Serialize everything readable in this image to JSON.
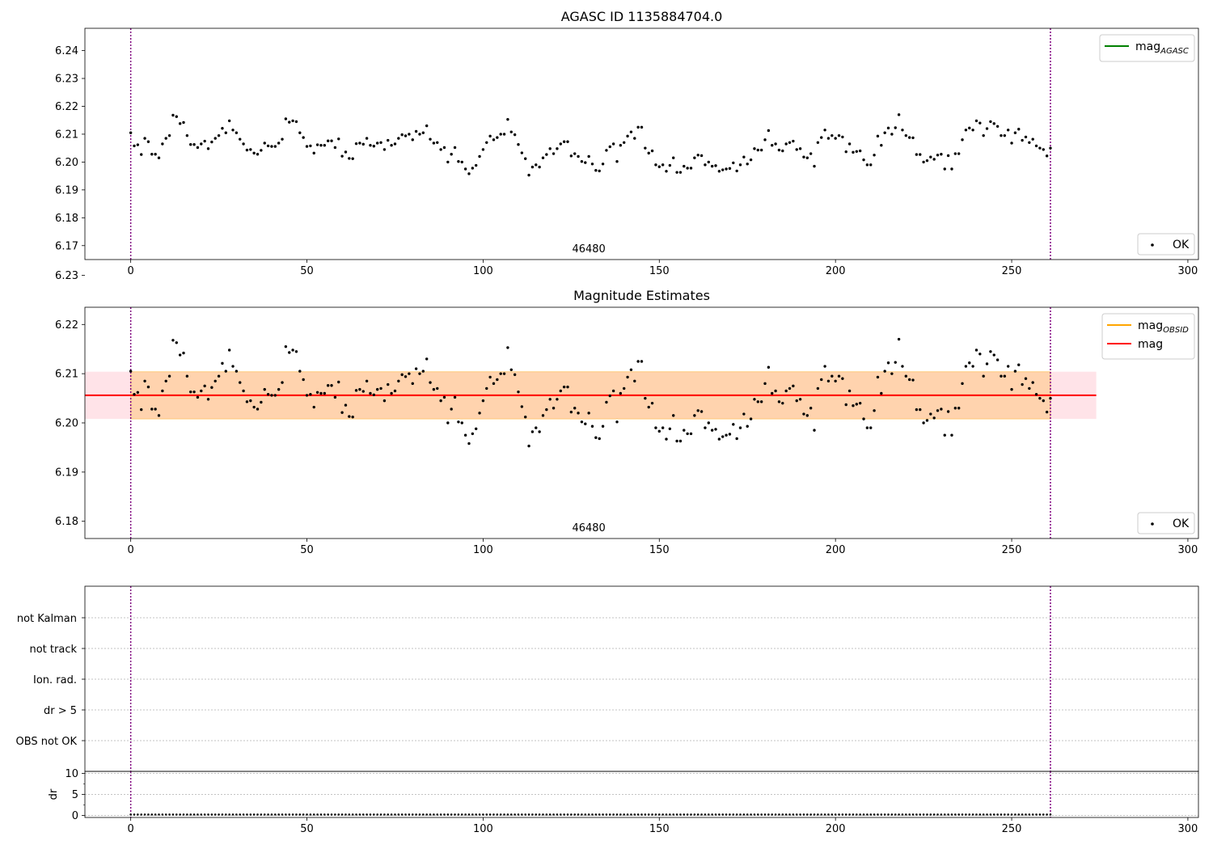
{
  "chart_data": [
    {
      "type": "scatter",
      "title": "AGASC ID 1135884704.0",
      "xlim": [
        -13,
        303
      ],
      "ylim": [
        6.165,
        6.248
      ],
      "x_ticks": [
        0,
        50,
        100,
        150,
        200,
        250,
        300
      ],
      "y_ticks": [
        6.17,
        6.18,
        6.19,
        6.2,
        6.21,
        6.22,
        6.23,
        6.24
      ],
      "y_tick_labels": [
        "6.17",
        "6.18",
        "6.19",
        "6.20",
        "6.21",
        "6.22",
        "6.23",
        "6.24"
      ],
      "obsid_boundaries": [
        0,
        261
      ],
      "annotation": {
        "text": "46480",
        "x": 130
      },
      "legend_lines": [
        {
          "label": "mag",
          "sub": "AGASC",
          "color": "#008000"
        }
      ],
      "legend_points": [
        {
          "label": "OK",
          "color": "#000000"
        }
      ],
      "series_ref": "mag_points"
    },
    {
      "type": "scatter",
      "title": "Magnitude Estimates",
      "xlim": [
        -13,
        303
      ],
      "ylim": [
        6.1765,
        6.2235
      ],
      "x_ticks": [
        0,
        50,
        100,
        150,
        200,
        250,
        300
      ],
      "y_ticks": [
        6.18,
        6.19,
        6.2,
        6.21,
        6.22,
        6.23
      ],
      "y_tick_labels": [
        "6.18",
        "6.19",
        "6.20",
        "6.21",
        "6.22",
        "6.23"
      ],
      "obsid_boundaries": [
        0,
        261
      ],
      "annotation": {
        "text": "46480",
        "x": 130
      },
      "mag": 6.2056,
      "mag_band": [
        6.2008,
        6.2104
      ],
      "band_x_range": [
        -13,
        274
      ],
      "obsid_band_x_range": [
        0,
        261
      ],
      "legend_lines": [
        {
          "label": "mag",
          "sub": "OBSID",
          "color": "#ffa500"
        },
        {
          "label": "mag",
          "sub": "",
          "color": "#ff0000"
        }
      ],
      "legend_points": [
        {
          "label": "OK",
          "color": "#000000"
        }
      ],
      "series_ref": "mag_points"
    },
    {
      "type": "scatter",
      "title": "",
      "categories": [
        "not Kalman",
        "not track",
        "Ion. rad.",
        "dr > 5",
        "OBS not OK"
      ],
      "xlim": [
        -13,
        303
      ],
      "obsid_boundaries": [
        0,
        261
      ]
    },
    {
      "type": "scatter",
      "title": "",
      "ylabel": "dr",
      "xlim": [
        -13,
        303
      ],
      "ylim": [
        -0.5,
        10.5
      ],
      "x_ticks": [
        0,
        50,
        100,
        150,
        200,
        250,
        300
      ],
      "y_ticks": [
        0,
        5,
        10
      ],
      "y_tick_labels": [
        "0",
        "5",
        "10"
      ],
      "obsid_boundaries": [
        0,
        261
      ],
      "dr_value": 0.2
    }
  ],
  "mag_points": {
    "x_start": 0,
    "x_step": 1,
    "y": [
      6.2105,
      6.2058,
      6.2062,
      6.2027,
      6.2085,
      6.2073,
      6.2028,
      6.2028,
      6.2015,
      6.2065,
      6.2085,
      6.2095,
      6.2168,
      6.2163,
      6.2138,
      6.2142,
      6.2095,
      6.2063,
      6.2063,
      6.2052,
      6.2065,
      6.2075,
      6.2048,
      6.2072,
      6.2085,
      6.2095,
      6.2121,
      6.2105,
      6.2148,
      6.2115,
      6.2105,
      6.2082,
      6.2065,
      6.2043,
      6.2045,
      6.2032,
      6.2028,
      6.2042,
      6.2068,
      6.2058,
      6.2056,
      6.2056,
      6.2068,
      6.2082,
      6.2155,
      6.2143,
      6.2148,
      6.2145,
      6.2105,
      6.2088,
      6.2056,
      6.2058,
      6.2032,
      6.2062,
      6.206,
      6.206,
      6.2076,
      6.2076,
      6.2052,
      6.2083,
      6.2021,
      6.2036,
      6.2013,
      6.2012,
      6.2066,
      6.2068,
      6.2064,
      6.2085,
      6.206,
      6.2057,
      6.2068,
      6.207,
      6.2045,
      6.2078,
      6.206,
      6.2065,
      6.2085,
      6.2098,
      6.2094,
      6.21,
      6.208,
      6.211,
      6.21,
      6.2105,
      6.213,
      6.2082,
      6.2068,
      6.207,
      6.2045,
      6.2052,
      6.2,
      6.2028,
      6.2052,
      6.2002,
      6.2,
      6.1975,
      6.1958,
      6.1978,
      6.1988,
      6.202,
      6.2045,
      6.207,
      6.2093,
      6.208,
      6.2088,
      6.21,
      6.21,
      6.2153,
      6.2108,
      6.2098,
      6.2063,
      6.2033,
      6.2012,
      6.1953,
      6.1982,
      6.199,
      6.1982,
      6.2015,
      6.2027,
      6.2048,
      6.203,
      6.2048,
      6.2065,
      6.2073,
      6.2073,
      6.2022,
      6.203,
      6.202,
      6.2002,
      6.1998,
      6.202,
      6.1993,
      6.197,
      6.1968,
      6.1993,
      6.2042,
      6.2055,
      6.2065,
      6.2002,
      6.206,
      6.207,
      6.2093,
      6.2108,
      6.2085,
      6.2125,
      6.2125,
      6.205,
      6.2032,
      6.204,
      6.199,
      6.1983,
      6.199,
      6.1967,
      6.1988,
      6.2015,
      6.1963,
      6.1963,
      6.1985,
      6.1978,
      6.1978,
      6.2015,
      6.2025,
      6.2023,
      6.199,
      6.2,
      6.1985,
      6.1987,
      6.1967,
      6.1972,
      6.1975,
      6.1977,
      6.1997,
      6.1968,
      6.199,
      6.2018,
      6.1993,
      6.2008,
      6.2048,
      6.2043,
      6.2043,
      6.208,
      6.2113,
      6.206,
      6.2065,
      6.2043,
      6.204,
      6.2065,
      6.207,
      6.2075,
      6.2045,
      6.2048,
      6.2018,
      6.2015,
      6.203,
      6.1985,
      6.207,
      6.2088,
      6.2115,
      6.2085,
      6.2095,
      6.2085,
      6.2095,
      6.209,
      6.2037,
      6.2065,
      6.2035,
      6.2038,
      6.204,
      6.2008,
      6.199,
      6.199,
      6.2025,
      6.2093,
      6.206,
      6.2105,
      6.2122,
      6.21,
      6.2123,
      6.217,
      6.2115,
      6.2095,
      6.2088,
      6.2087,
      6.2027,
      6.2027,
      6.2,
      6.2005,
      6.2018,
      6.201,
      6.2025,
      6.2028,
      6.1975,
      6.2023,
      6.1975,
      6.203,
      6.203,
      6.208,
      6.2115,
      6.2122,
      6.2115,
      6.2148,
      6.214,
      6.2095,
      6.212,
      6.2145,
      6.2138,
      6.2128,
      6.2095,
      6.2095,
      6.2115,
      6.2068,
      6.2105,
      6.2118,
      6.2078,
      6.209,
      6.207,
      6.2082,
      6.2058,
      6.205,
      6.2045,
      6.2022,
      6.205
    ]
  }
}
